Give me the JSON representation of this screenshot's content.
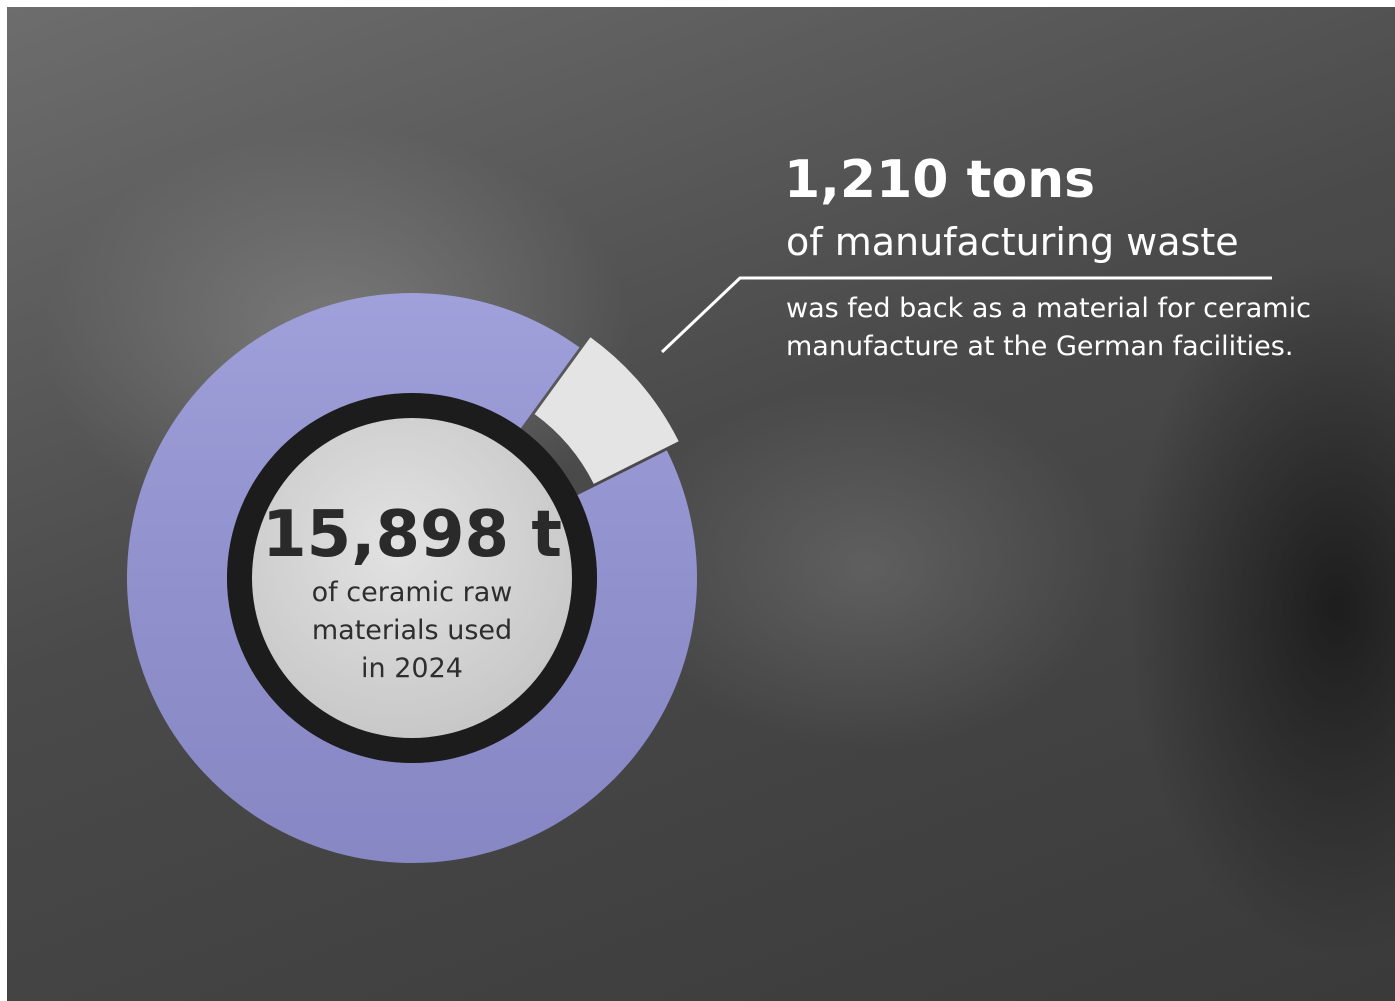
{
  "chart_data": {
    "type": "donut",
    "values": [
      15898,
      1210
    ],
    "value_labels": [
      "15,898 t",
      "1,210 tons"
    ],
    "colors": [
      "#9393d6",
      "#e4e4e4"
    ],
    "captions": [
      "of ceramic raw materials used in 2024",
      "was fed back as a material for ceramic manufacture at the German facilities."
    ],
    "subtitle": "of manufacturing waste"
  }
}
